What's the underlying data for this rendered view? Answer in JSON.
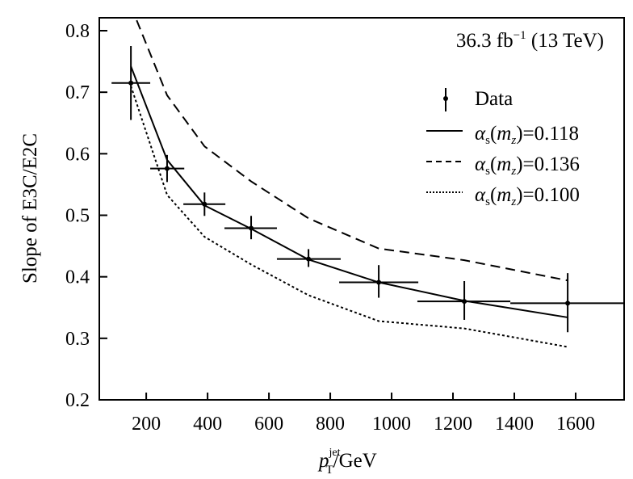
{
  "chart_data": {
    "type": "line",
    "title": "",
    "annotation": {
      "main": "36.3 fb",
      "sup": "−1",
      "rest": " (13 TeV)"
    },
    "xlabel": {
      "p": "p",
      "sup": "jet",
      "sub": "T",
      "rest": "/GeV"
    },
    "ylabel": "Slope of E3C/E2C",
    "xlim": [
      47,
      1758
    ],
    "ylim": [
      0.2,
      0.821
    ],
    "xticks": [
      200,
      400,
      600,
      800,
      1000,
      1200,
      1400,
      1600
    ],
    "xtick_labels": [
      "200",
      "400",
      "600",
      "800",
      "1000",
      "1200",
      "1400",
      "1600"
    ],
    "yticks": [
      0.2,
      0.3,
      0.4,
      0.5,
      0.6,
      0.7,
      0.8
    ],
    "ytick_labels": [
      "0.2",
      "0.3",
      "0.4",
      "0.5",
      "0.6",
      "0.7",
      "0.8"
    ],
    "grid": false,
    "legend_position": "top-right",
    "data": {
      "name": "Data",
      "points": [
        {
          "x": 150,
          "y": 0.715,
          "xlo": 87,
          "xhi": 213,
          "ylo": 0.655,
          "yhi": 0.775
        },
        {
          "x": 268,
          "y": 0.576,
          "xlo": 213,
          "xhi": 324,
          "ylo": 0.554,
          "yhi": 0.598
        },
        {
          "x": 390,
          "y": 0.518,
          "xlo": 321,
          "xhi": 458,
          "ylo": 0.499,
          "yhi": 0.537
        },
        {
          "x": 542,
          "y": 0.479,
          "xlo": 455,
          "xhi": 626,
          "ylo": 0.461,
          "yhi": 0.499
        },
        {
          "x": 729,
          "y": 0.429,
          "xlo": 626,
          "xhi": 834,
          "ylo": 0.416,
          "yhi": 0.445
        },
        {
          "x": 958,
          "y": 0.391,
          "xlo": 829,
          "xhi": 1087,
          "ylo": 0.366,
          "yhi": 0.419
        },
        {
          "x": 1237,
          "y": 0.36,
          "xlo": 1084,
          "xhi": 1387,
          "ylo": 0.33,
          "yhi": 0.393
        },
        {
          "x": 1574,
          "y": 0.357,
          "xlo": 1387,
          "xhi": 1800,
          "ylo": 0.31,
          "yhi": 0.406
        }
      ]
    },
    "x": [
      150,
      268,
      390,
      542,
      729,
      958,
      1237,
      1574
    ],
    "series": [
      {
        "name": "αs(mz)=0.118",
        "style": "solid",
        "legend": {
          "a": "α",
          "s": "s",
          "m": "m",
          "z": "z",
          "value": "0.118"
        },
        "values": [
          0.742,
          0.59,
          0.516,
          0.478,
          0.428,
          0.391,
          0.361,
          0.334
        ]
      },
      {
        "name": "αs(mz)=0.136",
        "style": "dashed",
        "legend": {
          "a": "α",
          "s": "s",
          "m": "m",
          "z": "z",
          "value": "0.136"
        },
        "values": [
          0.84,
          0.695,
          0.612,
          0.555,
          0.495,
          0.446,
          0.427,
          0.394
        ]
      },
      {
        "name": "αs(mz)=0.100",
        "style": "dotted",
        "legend": {
          "a": "α",
          "s": "s",
          "m": "m",
          "z": "z",
          "value": "0.100"
        },
        "values": [
          0.71,
          0.533,
          0.465,
          0.42,
          0.37,
          0.328,
          0.316,
          0.286
        ]
      }
    ],
    "colors": {
      "ink": "#000000",
      "background": "#ffffff"
    }
  }
}
